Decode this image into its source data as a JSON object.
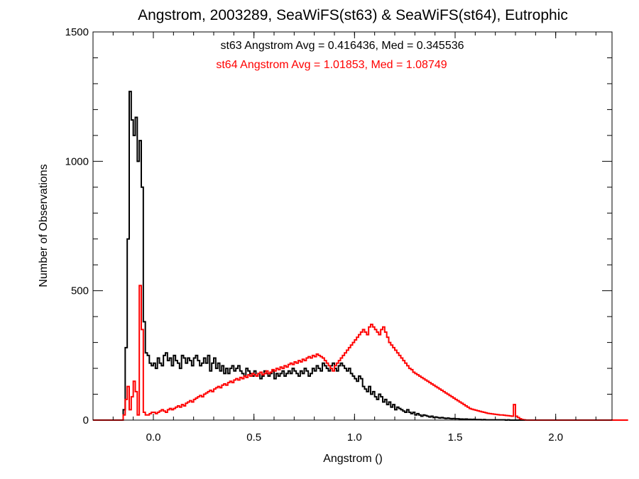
{
  "chart_data": {
    "type": "histogram",
    "title": "Angstrom, 2003289, SeaWiFS(st63) & SeaWiFS(st64), Eutrophic",
    "xlabel": "Angstrom ()",
    "ylabel": "Number of Observations",
    "xlim": [
      -0.3,
      2.28
    ],
    "ylim": [
      0,
      1500
    ],
    "x_ticks": [
      0.0,
      0.5,
      1.0,
      1.5,
      2.0
    ],
    "x_tick_labels": [
      "0.0",
      "0.5",
      "1.0",
      "1.5",
      "2.0"
    ],
    "y_ticks": [
      0,
      500,
      1000,
      1500
    ],
    "y_tick_labels": [
      "0",
      "500",
      "1000",
      "1500"
    ],
    "grid": false,
    "annotations": [
      {
        "text": "st63 Angstrom Avg = 0.416436, Med = 0.345536",
        "color": "#000000"
      },
      {
        "text": "st64 Angstrom Avg = 1.01853, Med = 1.08749",
        "color": "#ff0000"
      }
    ],
    "series": [
      {
        "color": "#000000",
        "bin_width": 0.01,
        "bin_start": -0.3,
        "counts": [
          0,
          0,
          0,
          0,
          0,
          0,
          0,
          0,
          0,
          0,
          0,
          0,
          0,
          0,
          0,
          40,
          280,
          700,
          1270,
          1160,
          1100,
          1170,
          1000,
          1080,
          900,
          380,
          260,
          250,
          220,
          210,
          220,
          200,
          240,
          220,
          210,
          250,
          260,
          230,
          240,
          210,
          250,
          230,
          220,
          200,
          250,
          240,
          220,
          240,
          230,
          210,
          240,
          250,
          230,
          210,
          220,
          240,
          220,
          250,
          190,
          220,
          240,
          200,
          220,
          190,
          210,
          180,
          200,
          180,
          200,
          210,
          190,
          200,
          210,
          190,
          180,
          170,
          200,
          190,
          180,
          170,
          190,
          170,
          180,
          160,
          170,
          190,
          180,
          170,
          180,
          190,
          160,
          180,
          170,
          180,
          190,
          170,
          180,
          190,
          180,
          200,
          190,
          180,
          170,
          190,
          180,
          200,
          190,
          170,
          180,
          200,
          190,
          210,
          200,
          190,
          220,
          210,
          200,
          190,
          210,
          220,
          200,
          190,
          210,
          220,
          210,
          200,
          190,
          200,
          180,
          170,
          160,
          150,
          170,
          160,
          130,
          120,
          110,
          130,
          100,
          110,
          90,
          80,
          100,
          90,
          70,
          80,
          60,
          70,
          50,
          60,
          40,
          50,
          45,
          40,
          35,
          30,
          40,
          30,
          25,
          30,
          20,
          25,
          20,
          15,
          20,
          18,
          15,
          12,
          15,
          10,
          12,
          10,
          8,
          10,
          8,
          6,
          8,
          6,
          5,
          6,
          5,
          5,
          4,
          4,
          3,
          4,
          3,
          3,
          2,
          3,
          2,
          2,
          2,
          1,
          2,
          1,
          1,
          1,
          1,
          1,
          1,
          1,
          1,
          1,
          1,
          0,
          1,
          0,
          0,
          0,
          0,
          0,
          0,
          0,
          0,
          0,
          0,
          0,
          0,
          0,
          0,
          0,
          0,
          0,
          0,
          0,
          0,
          0,
          0,
          0,
          0,
          0,
          0,
          0,
          0,
          0,
          0,
          0,
          0,
          0,
          0,
          0,
          0,
          0,
          0,
          0,
          0,
          0,
          0,
          0,
          0,
          0,
          0,
          0,
          0,
          0,
          0,
          0,
          0
        ]
      },
      {
        "color": "#ff0000",
        "bin_width": 0.01,
        "bin_start": -0.3,
        "counts": [
          0,
          0,
          0,
          0,
          0,
          0,
          0,
          0,
          0,
          0,
          0,
          0,
          0,
          0,
          0,
          20,
          80,
          130,
          40,
          90,
          150,
          110,
          20,
          520,
          350,
          30,
          20,
          20,
          25,
          30,
          30,
          25,
          30,
          35,
          40,
          35,
          30,
          40,
          45,
          40,
          45,
          50,
          55,
          50,
          60,
          55,
          65,
          70,
          75,
          70,
          80,
          85,
          90,
          95,
          90,
          100,
          105,
          110,
          115,
          110,
          120,
          125,
          130,
          125,
          135,
          140,
          135,
          145,
          150,
          145,
          155,
          160,
          155,
          165,
          160,
          170,
          165,
          175,
          170,
          180,
          175,
          170,
          180,
          185,
          175,
          180,
          190,
          180,
          185,
          195,
          190,
          200,
          195,
          205,
          200,
          210,
          205,
          215,
          220,
          215,
          225,
          220,
          230,
          225,
          235,
          230,
          240,
          245,
          240,
          250,
          245,
          255,
          250,
          245,
          240,
          230,
          220,
          210,
          200,
          190,
          210,
          220,
          230,
          240,
          250,
          260,
          270,
          280,
          290,
          300,
          310,
          320,
          330,
          340,
          350,
          340,
          330,
          360,
          370,
          360,
          350,
          340,
          330,
          350,
          360,
          340,
          320,
          300,
          290,
          280,
          270,
          260,
          250,
          240,
          230,
          220,
          210,
          200,
          195,
          185,
          180,
          175,
          170,
          165,
          160,
          155,
          150,
          145,
          140,
          135,
          130,
          125,
          120,
          115,
          110,
          105,
          100,
          95,
          90,
          85,
          80,
          75,
          70,
          65,
          60,
          55,
          50,
          45,
          42,
          40,
          38,
          36,
          34,
          32,
          30,
          28,
          26,
          25,
          24,
          23,
          22,
          21,
          20,
          20,
          19,
          18,
          17,
          16,
          15,
          60,
          15,
          10,
          5,
          2,
          1,
          0,
          0,
          0,
          0,
          0,
          0,
          0,
          0,
          0,
          0,
          0,
          0,
          0,
          0,
          0,
          0,
          0,
          0,
          0,
          0,
          0,
          0,
          0,
          0,
          0,
          0,
          0,
          0,
          0,
          0,
          0,
          0,
          0,
          0,
          0,
          0,
          0,
          0,
          0,
          0,
          0,
          0,
          0,
          0,
          0,
          0,
          0,
          0,
          0,
          0,
          0
        ]
      }
    ]
  }
}
